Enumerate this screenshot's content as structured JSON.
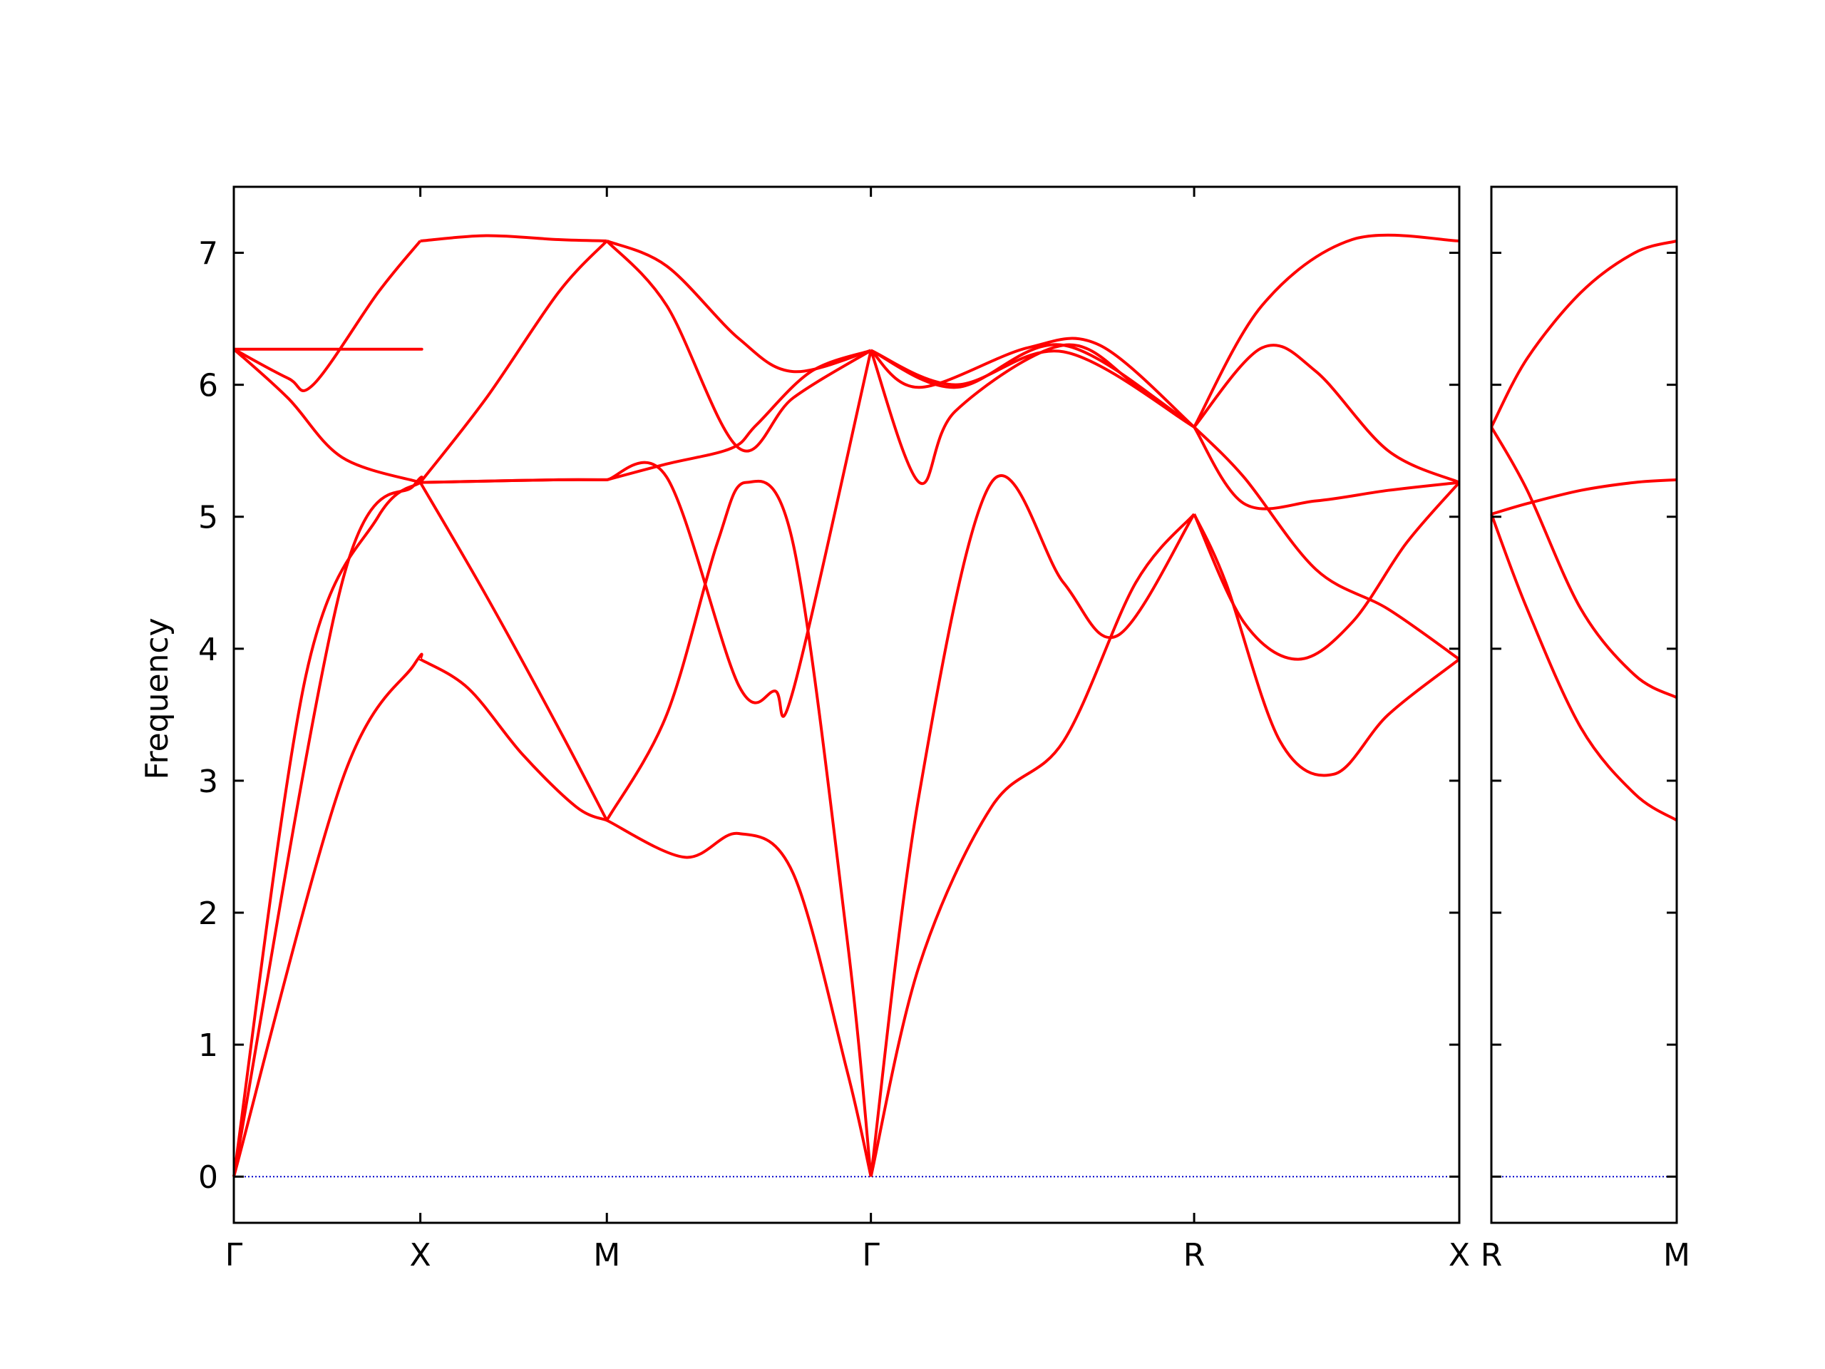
{
  "chart_data": {
    "type": "line",
    "ylabel": "Frequency",
    "ylim": [
      -0.35,
      7.5
    ],
    "yticks": [
      0,
      1,
      2,
      3,
      4,
      5,
      6,
      7
    ],
    "line_color": "#ff0000",
    "zero_line_color": "#0000cc",
    "panels": [
      {
        "xlim": [
          0,
          3.397
        ],
        "ticks": [
          {
            "label": "Γ",
            "x": 0
          },
          {
            "label": "X",
            "x": 0.517
          },
          {
            "label": "M",
            "x": 1.034
          },
          {
            "label": "Γ",
            "x": 1.766
          },
          {
            "label": "R",
            "x": 2.662
          },
          {
            "label": "X",
            "x": 3.397
          }
        ],
        "bands": [
          {
            "x": [
              0,
              0.3,
              0.5,
              0.517,
              0.517,
              0.65,
              0.8,
              0.95,
              1.034,
              1.034,
              1.25,
              1.4,
              1.55,
              1.7,
              1.766,
              1.766,
              1.9,
              2.1,
              2.3,
              2.5,
              2.662,
              2.662,
              2.75,
              2.9,
              3.05,
              3.2,
              3.397
            ],
            "y": [
              0,
              3.0,
              3.88,
              3.92,
              3.92,
              3.7,
              3.2,
              2.8,
              2.7,
              2.7,
              2.42,
              2.6,
              2.3,
              0.8,
              0,
              0,
              1.6,
              2.8,
              3.3,
              4.5,
              5.02,
              5.02,
              4.5,
              3.3,
              3.05,
              3.5,
              3.92
            ]
          },
          {
            "x": [
              0,
              0.3,
              0.5,
              0.517,
              0.517,
              0.7,
              0.9,
              1.034,
              1.034,
              1.2,
              1.34,
              1.42,
              1.55,
              1.7,
              1.766,
              1.766,
              1.9,
              2.1,
              2.3,
              2.45,
              2.662,
              2.662,
              2.8,
              2.95,
              3.1,
              3.25,
              3.397
            ],
            "y": [
              0,
              4.5,
              5.24,
              5.26,
              5.26,
              4.4,
              3.4,
              2.7,
              2.7,
              3.5,
              4.8,
              5.26,
              4.8,
              1.8,
              0,
              0,
              2.9,
              5.26,
              4.5,
              4.1,
              5.02,
              5.02,
              4.2,
              3.92,
              4.2,
              4.8,
              5.26
            ]
          },
          {
            "x": [
              0,
              0.2,
              0.4,
              0.517,
              0.517,
              0.7,
              0.9,
              1.034,
              1.034,
              1.2,
              1.4,
              1.5,
              1.55,
              1.766,
              1.766,
              1.9,
              2.0,
              2.3,
              2.5,
              2.662,
              2.662,
              2.8,
              3.0,
              3.2,
              3.397
            ],
            "y": [
              0,
              3.8,
              5.0,
              5.26,
              5.26,
              5.27,
              5.28,
              5.28,
              5.28,
              5.3,
              3.72,
              3.68,
              3.68,
              6.26,
              6.26,
              5.26,
              5.8,
              6.3,
              6.0,
              5.68,
              5.68,
              5.3,
              4.6,
              4.3,
              3.92
            ]
          },
          {
            "x": [
              0,
              0.15,
              0.3,
              0.517,
              0.517,
              0.7,
              0.9,
              1.034,
              1.034,
              1.2,
              1.38,
              1.45,
              1.6,
              1.766,
              1.766,
              1.9,
              2.2,
              2.4,
              2.662,
              2.662,
              2.8,
              3.0,
              3.2,
              3.397
            ],
            "y": [
              6.27,
              5.9,
              5.45,
              5.26,
              5.26,
              5.27,
              5.28,
              5.28,
              5.28,
              5.4,
              5.52,
              5.7,
              6.1,
              6.26,
              6.26,
              5.98,
              6.28,
              6.3,
              5.68,
              5.68,
              5.1,
              5.12,
              5.2,
              5.26
            ]
          },
          {
            "x": [
              0,
              0.15,
              0.22,
              0.4,
              0.517,
              0.517,
              0.7,
              0.9,
              1.034,
              1.034,
              1.2,
              1.4,
              1.55,
              1.766,
              1.766,
              2.0,
              2.3,
              2.662,
              2.662,
              2.85,
              3.0,
              3.2,
              3.397
            ],
            "y": [
              6.27,
              6.05,
              6.0,
              6.7,
              7.09,
              7.09,
              7.13,
              7.1,
              7.09,
              7.09,
              6.6,
              5.52,
              5.9,
              6.26,
              6.26,
              6.0,
              6.25,
              5.68,
              5.68,
              6.28,
              6.1,
              5.5,
              5.26
            ]
          },
          {
            "x": [
              0,
              0.3,
              0.5,
              0.517,
              0.517,
              0.7,
              0.9,
              1.034,
              1.034,
              1.2,
              1.4,
              1.55,
              1.766,
              1.766,
              2.0,
              2.3,
              2.662,
              2.662,
              2.85,
              3.1,
              3.397
            ],
            "y": [
              6.27,
              6.27,
              6.27,
              6.27,
              5.26,
              5.9,
              6.7,
              7.09,
              7.09,
              6.9,
              6.35,
              6.1,
              6.26,
              6.26,
              5.98,
              6.3,
              5.68,
              5.68,
              6.6,
              7.1,
              7.09
            ]
          }
        ]
      },
      {
        "xlim": [
          0,
          0.517
        ],
        "ticks": [
          {
            "label": "R",
            "x": 0
          },
          {
            "label": "M",
            "x": 0.517
          }
        ],
        "bands": [
          {
            "x": [
              0,
              0.1,
              0.25,
              0.4,
              0.517
            ],
            "y": [
              5.02,
              4.3,
              3.4,
              2.9,
              2.7
            ]
          },
          {
            "x": [
              0,
              0.1,
              0.25,
              0.4,
              0.517
            ],
            "y": [
              5.02,
              5.1,
              5.2,
              5.26,
              5.28
            ]
          },
          {
            "x": [
              0,
              0.1,
              0.25,
              0.4,
              0.517
            ],
            "y": [
              5.68,
              5.2,
              4.3,
              3.8,
              3.63
            ]
          },
          {
            "x": [
              0,
              0.1,
              0.25,
              0.4,
              0.517
            ],
            "y": [
              5.68,
              6.2,
              6.7,
              7.0,
              7.09
            ]
          }
        ]
      }
    ]
  }
}
